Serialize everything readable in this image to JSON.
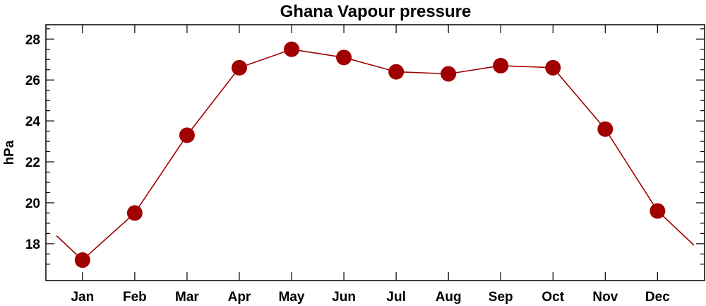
{
  "chart_data": {
    "type": "line",
    "title": "Ghana Vapour pressure",
    "xlabel": "",
    "ylabel": "hPa",
    "categories": [
      "Jan",
      "Feb",
      "Mar",
      "Apr",
      "May",
      "Jun",
      "Jul",
      "Aug",
      "Sep",
      "Oct",
      "Nov",
      "Dec"
    ],
    "series": [
      {
        "values": [
          17.2,
          19.5,
          23.3,
          26.6,
          27.5,
          27.1,
          26.4,
          26.3,
          26.7,
          26.6,
          23.6,
          19.6
        ]
      }
    ],
    "ylim": [
      16.2,
      28.7
    ],
    "yticks": [
      18,
      20,
      22,
      24,
      26,
      28
    ],
    "ytick_labels": [
      "18",
      "20",
      "22",
      "24",
      "26",
      "28"
    ],
    "grid": false,
    "colors": {
      "line": "#a00000",
      "marker": "#a00000"
    }
  }
}
